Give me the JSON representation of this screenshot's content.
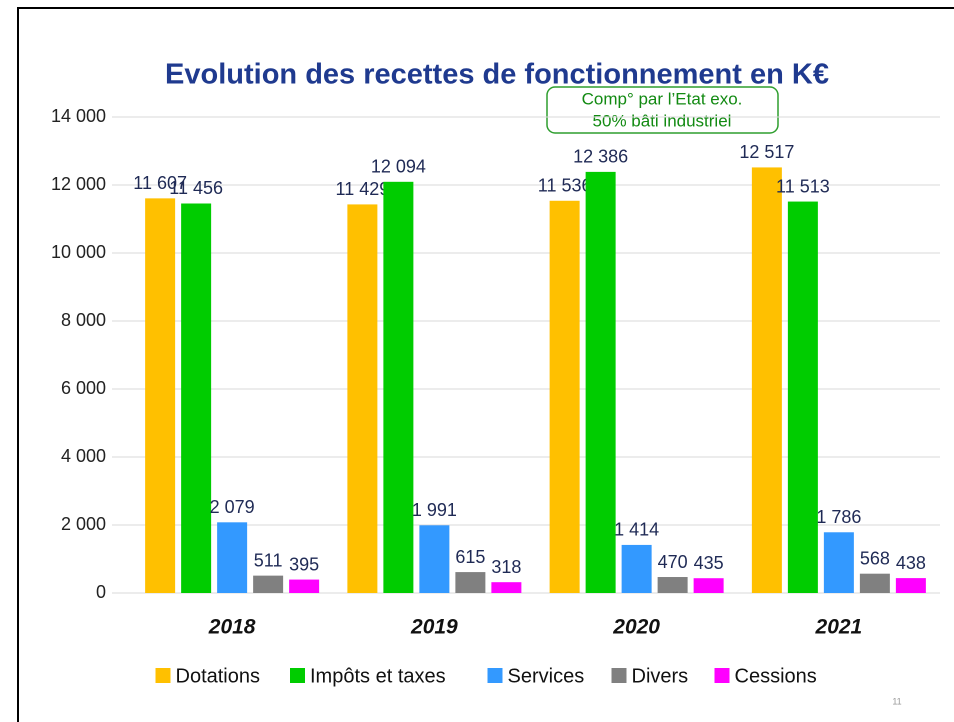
{
  "chart_data": {
    "type": "bar",
    "title": "Evolution des recettes de fonctionnement en K€",
    "annotation": [
      "Comp° par l’Etat exo.",
      "50% bâti industriel"
    ],
    "categories": [
      "2018",
      "2019",
      "2020",
      "2021"
    ],
    "series": [
      {
        "name": "Dotations",
        "color": "#ffc000",
        "values": [
          11607,
          11429,
          11536,
          12517
        ],
        "value_labels": [
          "11 607",
          "11 429",
          "11 536",
          "12 517"
        ]
      },
      {
        "name": "Impôts et taxes",
        "color": "#00cc00",
        "values": [
          11456,
          12094,
          12386,
          11513
        ],
        "value_labels": [
          "11 456",
          "12 094",
          "12 386",
          "11 513"
        ]
      },
      {
        "name": "Services",
        "color": "#3399ff",
        "values": [
          2079,
          1991,
          1414,
          1786
        ],
        "value_labels": [
          "2 079",
          "1 991",
          "1 414",
          "1 786"
        ]
      },
      {
        "name": "Divers",
        "color": "#808080",
        "values": [
          511,
          615,
          470,
          568
        ]
      },
      {
        "name": "Cessions",
        "color": "#ff00ff",
        "values": [
          395,
          318,
          435,
          438
        ]
      }
    ],
    "ylim": [
      0,
      14000
    ],
    "yticks": [
      0,
      {
        "value": 2000,
        "label": "2 000"
      },
      {
        "value": 4000,
        "label": "4 000"
      },
      {
        "value": 6000,
        "label": "6 000"
      },
      {
        "value": 8000,
        "label": "8 000"
      },
      {
        "value": 10000,
        "label": "10 000"
      },
      {
        "value": 12000,
        "label": "12 000"
      },
      {
        "value": 14000,
        "label": "14 000"
      }
    ],
    "grid": true,
    "legend": "bottom"
  },
  "page_number": "11"
}
